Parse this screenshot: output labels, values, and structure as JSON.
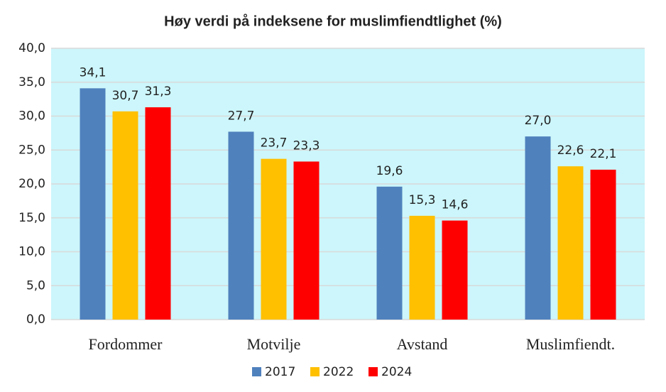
{
  "chart_data": {
    "type": "bar",
    "title": "Høy verdi på indeksene for muslimfiendtlighet (%)",
    "categories": [
      "Fordommer",
      "Motvilje",
      "Avstand",
      "Muslimfiendt."
    ],
    "series": [
      {
        "name": "2017",
        "color": "#4f81bd",
        "values": [
          34.1,
          27.7,
          19.6,
          27.0
        ],
        "value_labels": [
          "34,1",
          "27,7",
          "19,6",
          "27,0"
        ]
      },
      {
        "name": "2022",
        "color": "#ffc000",
        "values": [
          30.7,
          23.7,
          15.3,
          22.6
        ],
        "value_labels": [
          "30,7",
          "23,7",
          "15,3",
          "22,6"
        ]
      },
      {
        "name": "2024",
        "color": "#ff0000",
        "values": [
          31.3,
          23.3,
          14.6,
          22.1
        ],
        "value_labels": [
          "31,3",
          "23,3",
          "14,6",
          "22,1"
        ]
      }
    ],
    "ylim": [
      0,
      40
    ],
    "yticks": [
      {
        "value": 0,
        "label": "0,0"
      },
      {
        "value": 5,
        "label": "5,0"
      },
      {
        "value": 10,
        "label": "10,0"
      },
      {
        "value": 15,
        "label": "15,0"
      },
      {
        "value": 20,
        "label": "20,0"
      },
      {
        "value": 25,
        "label": "25,0"
      },
      {
        "value": 30,
        "label": "30,0"
      },
      {
        "value": 35,
        "label": "35,0"
      },
      {
        "value": 40,
        "label": "40,0"
      }
    ],
    "grid": true,
    "legend": "bottom",
    "background": "#ccf6fb"
  }
}
